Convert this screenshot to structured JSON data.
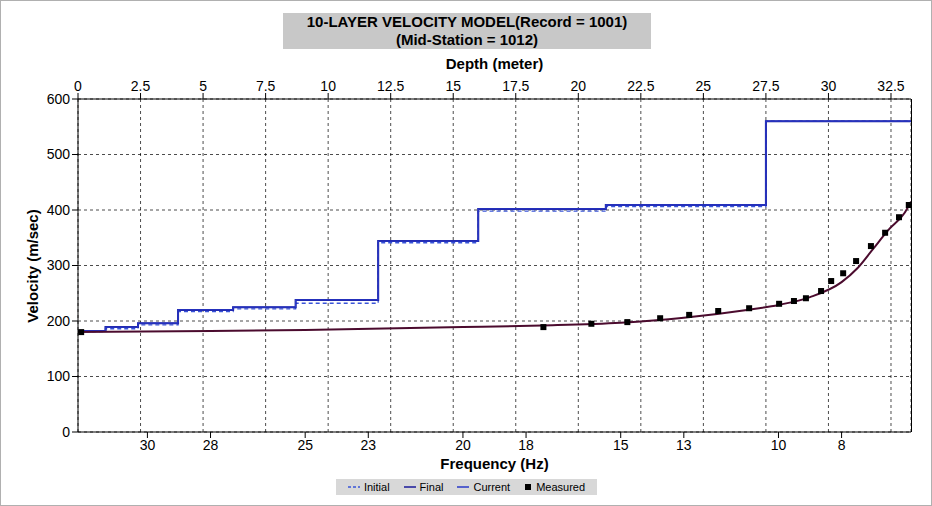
{
  "chart_data": {
    "type": "line",
    "title": "10-LAYER VELOCITY MODEL(Record = 1001)",
    "subtitle": "(Mid-Station = 1012)",
    "x_label": "Depth (meter)",
    "x2_label": "Frequency (Hz)",
    "y_label": "Velocity (m/sec)",
    "xlim": [
      0,
      33.3
    ],
    "xticks": [
      0,
      2.5,
      5,
      7.5,
      10,
      12.5,
      15,
      17.5,
      20,
      22.5,
      25,
      27.5,
      30,
      32.5
    ],
    "x2lim": [
      32.2,
      5.8
    ],
    "x2ticks": [
      30,
      28,
      25,
      23,
      20,
      18,
      15,
      13,
      10,
      8
    ],
    "ylim": [
      0,
      600
    ],
    "yticks": [
      0,
      100,
      200,
      300,
      400,
      500,
      600
    ],
    "grid": true,
    "legend": "bottom",
    "series": [
      {
        "name": "Initial",
        "color": "#3a55d8",
        "line_style": "dashed",
        "type": "step",
        "x": [
          0,
          1.1,
          2.4,
          4.0,
          6.2,
          8.7,
          12.0,
          16.0,
          21.1,
          27.5
        ],
        "values": [
          181,
          186,
          193,
          217,
          222,
          232,
          341,
          398,
          406,
          560
        ]
      },
      {
        "name": "Final",
        "color": "#1a1a9a",
        "line_style": "solid",
        "type": "step",
        "x": [
          0,
          1.1,
          2.4,
          4.0,
          6.2,
          8.7,
          12.0,
          16.0,
          21.1,
          27.5
        ],
        "values": [
          182,
          189,
          196,
          220,
          225,
          238,
          344,
          402,
          409,
          560
        ]
      },
      {
        "name": "Current",
        "color": "#2a3ac8",
        "line_style": "solid",
        "type": "step",
        "x": [
          0,
          1.1,
          2.4,
          4.0,
          6.2,
          8.7,
          12.0,
          16.0,
          21.1,
          27.5
        ],
        "values": [
          182,
          189,
          196,
          220,
          225,
          238,
          344,
          402,
          409,
          560
        ]
      },
      {
        "name": "Measured",
        "color": "#000000",
        "type": "scatter",
        "marker": "square",
        "axis": "x2",
        "x": [
          32.1,
          17.45,
          15.93,
          14.79,
          13.75,
          12.83,
          11.91,
          10.93,
          9.98,
          9.51,
          9.13,
          8.65,
          8.33,
          7.95,
          7.54,
          7.07,
          6.62,
          6.18,
          5.87
        ],
        "values": [
          180,
          189,
          195,
          198,
          205,
          211,
          218,
          223,
          231,
          236,
          241,
          254,
          272,
          286,
          308,
          335,
          359,
          387,
          409
        ]
      }
    ],
    "dispersion_curve": {
      "color": "#4b0b2e",
      "axis": "x2",
      "x": [
        32.2,
        28,
        25,
        20,
        17.5,
        15,
        13,
        11,
        10,
        9,
        8,
        7.5,
        7,
        6.5,
        6,
        5.8
      ],
      "values": [
        180,
        182,
        184,
        189,
        192,
        197,
        206,
        220,
        229,
        243,
        270,
        295,
        330,
        365,
        395,
        415
      ]
    }
  }
}
